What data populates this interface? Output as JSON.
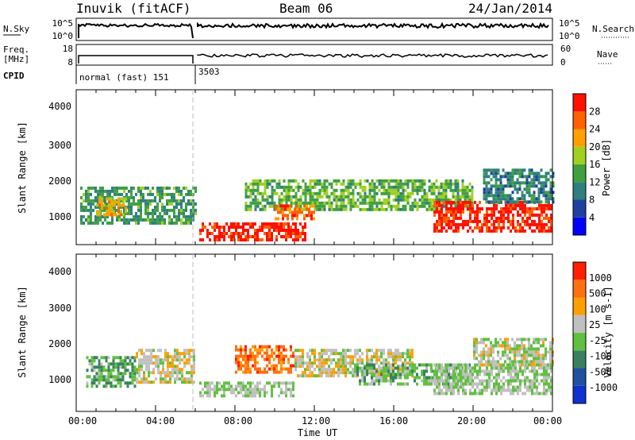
{
  "header": {
    "station": "Inuvik (fitACF)",
    "beam": "Beam 06",
    "date": "24/Jan/2014"
  },
  "top_panels": {
    "nsky_label": "N.Sky",
    "nsky_ticks": [
      "10^5",
      "10^0"
    ],
    "nsearch_label": "N.Search",
    "nsearch_ticks": [
      "10^5",
      "10^0"
    ],
    "freq_label_line1": "Freq.",
    "freq_label_line2": "[MHz]",
    "freq_ticks": [
      "18",
      "8"
    ],
    "nave_label": "Nave",
    "nave_ticks": [
      "60",
      "0"
    ],
    "cpid_label": "CPID",
    "cpid_segments": [
      "normal (fast) 151",
      "3503"
    ]
  },
  "power_panel": {
    "ylabel": "Slant Range [km]",
    "yticks": [
      "4000",
      "3000",
      "2000",
      "1000"
    ],
    "colorbar_label": "Power [dB]",
    "colorbar_ticks": [
      "28",
      "24",
      "20",
      "16",
      "12",
      "8",
      "4"
    ],
    "colors": [
      "#0000ff",
      "#2040a0",
      "#2f7f7f",
      "#40a040",
      "#a0d020",
      "#ffa000",
      "#ff6000",
      "#ff1000"
    ]
  },
  "velocity_panel": {
    "ylabel": "Slant Range [km]",
    "yticks": [
      "4000",
      "3000",
      "2000",
      "1000"
    ],
    "colorbar_label": "Velocity [m s-1]",
    "colorbar_ticks": [
      "1000",
      "500",
      "100",
      "25",
      "-25",
      "-100",
      "-500",
      "-1000"
    ],
    "colors": [
      "#1030d0",
      "#2050a0",
      "#3a8060",
      "#60c040",
      "#c0c0c0",
      "#ffa000",
      "#ff7010",
      "#ff2000"
    ]
  },
  "x_axis": {
    "ticks": [
      "00:00",
      "04:00",
      "08:00",
      "12:00",
      "16:00",
      "20:00",
      "00:00"
    ],
    "label": "Time UT"
  },
  "chart_data": {
    "type": "heatmap",
    "title": "Inuvik (fitACF)  Beam 06  24/Jan/2014",
    "xlabel": "Time UT",
    "xlim_hours": [
      0,
      24
    ],
    "ylim_km": [
      180,
      4500
    ],
    "mode_change_hour": 6.0,
    "cpid_changes": [
      {
        "start_hour": 0,
        "cpid": "normal (fast) 151"
      },
      {
        "start_hour": 6.0,
        "cpid": "3503"
      }
    ],
    "panels": [
      {
        "name": "Power",
        "units": "dB",
        "colorbar_range": [
          0,
          30
        ],
        "echo_regions": [
          {
            "t": [
              0.2,
              6.0
            ],
            "range_km": [
              800,
              1800
            ],
            "value": 12
          },
          {
            "t": [
              1.0,
              2.5
            ],
            "range_km": [
              1000,
              1500
            ],
            "value": 20
          },
          {
            "t": [
              6.2,
              11.5
            ],
            "range_km": [
              300,
              800
            ],
            "value": 28
          },
          {
            "t": [
              8.5,
              20.0
            ],
            "range_km": [
              1200,
              2000
            ],
            "value": 14
          },
          {
            "t": [
              10.0,
              12.0
            ],
            "range_km": [
              900,
              1300
            ],
            "value": 24
          },
          {
            "t": [
              18.0,
              24.0
            ],
            "range_km": [
              600,
              1400
            ],
            "value": 28
          },
          {
            "t": [
              20.5,
              24.0
            ],
            "range_km": [
              1400,
              2300
            ],
            "value": 10
          }
        ]
      },
      {
        "name": "Velocity",
        "units": "m s-1",
        "colorbar_range": [
          -1000,
          1000
        ],
        "echo_regions": [
          {
            "t": [
              0.5,
              3.0
            ],
            "range_km": [
              900,
              1700
            ],
            "value": -200
          },
          {
            "t": [
              3.0,
              6.0
            ],
            "range_km": [
              1000,
              1900
            ],
            "value": 150
          },
          {
            "t": [
              6.2,
              11.0
            ],
            "range_km": [
              600,
              1000
            ],
            "value": 0
          },
          {
            "t": [
              8.0,
              11.0
            ],
            "range_km": [
              1300,
              2000
            ],
            "value": 600
          },
          {
            "t": [
              11.0,
              17.0
            ],
            "range_km": [
              1200,
              1900
            ],
            "value": 120
          },
          {
            "t": [
              14.0,
              20.0
            ],
            "range_km": [
              900,
              1500
            ],
            "value": -150
          },
          {
            "t": [
              18.0,
              24.0
            ],
            "range_km": [
              700,
              1500
            ],
            "value": 0
          },
          {
            "t": [
              20.0,
              24.0
            ],
            "range_km": [
              1500,
              2200
            ],
            "value": 100
          }
        ]
      }
    ]
  }
}
